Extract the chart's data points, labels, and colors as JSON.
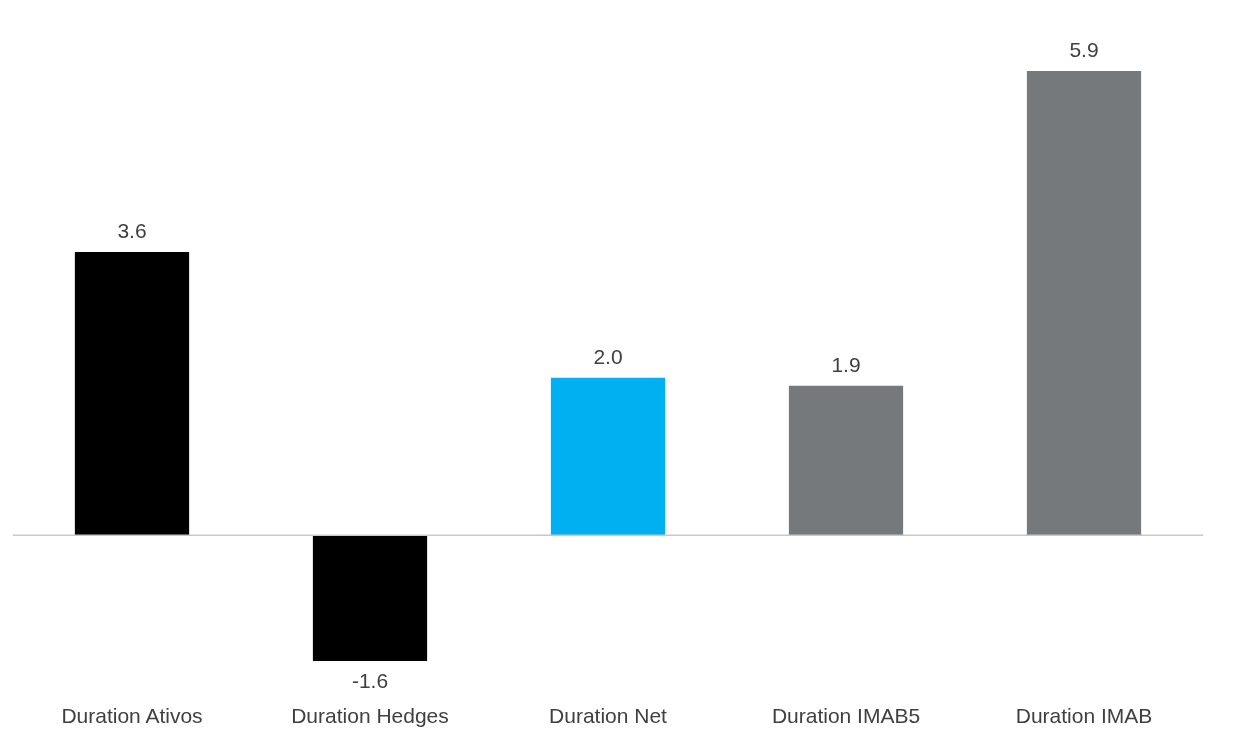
{
  "chart_data": {
    "type": "bar",
    "categories": [
      "Duration Ativos",
      "Duration Hedges",
      "Duration Net",
      "Duration IMAB5",
      "Duration IMAB"
    ],
    "values": [
      3.6,
      -1.6,
      2.0,
      1.9,
      5.9
    ],
    "colors": [
      "#000000",
      "#000000",
      "#00b0f0",
      "#75797c",
      "#75797c"
    ],
    "value_labels": [
      "3.6",
      "-1.6",
      "2.0",
      "1.9",
      "5.9"
    ]
  }
}
